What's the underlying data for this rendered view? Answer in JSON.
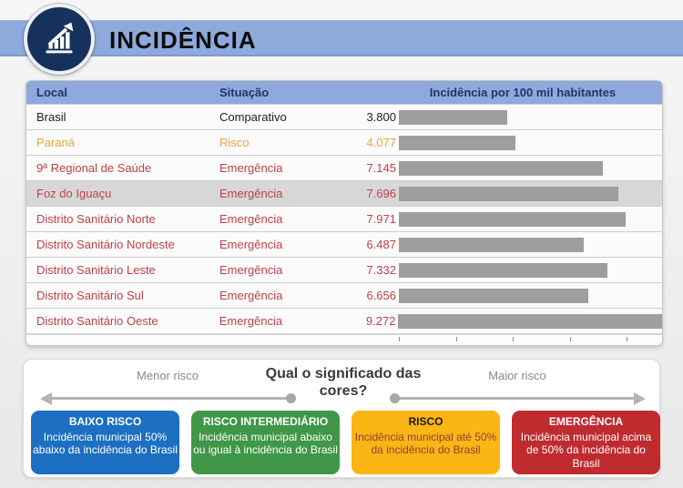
{
  "header": {
    "title": "INCIDÊNCIA",
    "icon": "bar-chart-trend-icon"
  },
  "table": {
    "columns": {
      "local": "Local",
      "situacao": "Situação",
      "incidencia": "Incidência por 100 mil habitantes"
    },
    "rows": [
      {
        "local": "Brasil",
        "situacao": "Comparativo",
        "value_label": "3.800",
        "value": 3800,
        "status": "comparativo",
        "highlighted": false
      },
      {
        "local": "Paraná",
        "situacao": "Risco",
        "value_label": "4.077",
        "value": 4077,
        "status": "risco",
        "highlighted": false
      },
      {
        "local": "9ª Regional de Saúde",
        "situacao": "Emergência",
        "value_label": "7.145",
        "value": 7145,
        "status": "emergencia",
        "highlighted": false
      },
      {
        "local": "Foz do Iguaçu",
        "situacao": "Emergência",
        "value_label": "7.696",
        "value": 7696,
        "status": "emergencia",
        "highlighted": true
      },
      {
        "local": "Distrito Sanitário Norte",
        "situacao": "Emergência",
        "value_label": "7.971",
        "value": 7971,
        "status": "emergencia",
        "highlighted": false
      },
      {
        "local": "Distrito Sanitário Nordeste",
        "situacao": "Emergência",
        "value_label": "6.487",
        "value": 6487,
        "status": "emergencia",
        "highlighted": false
      },
      {
        "local": "Distrito Sanitário Leste",
        "situacao": "Emergência",
        "value_label": "7.332",
        "value": 7332,
        "status": "emergencia",
        "highlighted": false
      },
      {
        "local": "Distrito Sanitário Sul",
        "situacao": "Emergência",
        "value_label": "6.656",
        "value": 6656,
        "status": "emergencia",
        "highlighted": false
      },
      {
        "local": "Distrito Sanitário Oeste",
        "situacao": "Emergência",
        "value_label": "9.272",
        "value": 9272,
        "status": "emergencia",
        "highlighted": false
      }
    ]
  },
  "legend": {
    "title": "Qual o significado das cores?",
    "left_label": "Menor risco",
    "right_label": "Maior risco",
    "boxes": [
      {
        "title": "BAIXO RISCO",
        "lines": [
          "Incidência municipal 50%",
          "abaixo da incidência do Brasil"
        ],
        "color": "#1D6FC2",
        "title_color": "#FFFFFF",
        "text_color": "#FFFFFF"
      },
      {
        "title": "RISCO INTERMEDIÁRIO",
        "lines": [
          "Incidência municipal abaixo",
          "ou igual à incidência do Brasil"
        ],
        "color": "#3F9747",
        "title_color": "#FFFFFF",
        "text_color": "#FFFFFF"
      },
      {
        "title": "RISCO",
        "lines": [
          "Incidência municipal até 50%",
          "da incidência do Brasil"
        ],
        "color": "#FBB515",
        "title_color": "#1A1A1A",
        "text_color": "#9A3B31"
      },
      {
        "title": "EMERGÊNCIA",
        "lines": [
          "Incidência municipal acima",
          "de 50% da incidência do",
          "Brasil"
        ],
        "color": "#C02B30",
        "title_color": "#FFFFFF",
        "text_color": "#FFFFFF"
      }
    ]
  },
  "colors": {
    "band_blue": "#8EA9DB",
    "header_text_navy": "#1F3864",
    "icon_navy": "#16325C",
    "bar_gray": "#9E9E9E",
    "highlight_row_gray": "#D7D7D7",
    "status": {
      "comparativo": "#1f1f1f",
      "risco": "#ECA33D",
      "emergencia": "#C0404A"
    }
  },
  "chart_data": {
    "type": "bar",
    "orientation": "horizontal",
    "title": "Incidência por 100 mil habitantes",
    "categories": [
      "Brasil",
      "Paraná",
      "9ª Regional de Saúde",
      "Foz do Iguaçu",
      "Distrito Sanitário Norte",
      "Distrito Sanitário Nordeste",
      "Distrito Sanitário Leste",
      "Distrito Sanitário Sul",
      "Distrito Sanitário Oeste"
    ],
    "values": [
      3800,
      4077,
      7145,
      7696,
      7971,
      6487,
      7332,
      6656,
      9272
    ],
    "statuses": [
      "Comparativo",
      "Risco",
      "Emergência",
      "Emergência",
      "Emergência",
      "Emergência",
      "Emergência",
      "Emergência",
      "Emergência"
    ],
    "xlim": [
      0,
      9500
    ],
    "tick_interval": 2000,
    "grid": false,
    "legend_position": "bottom",
    "bar_color": "#9E9E9E"
  }
}
